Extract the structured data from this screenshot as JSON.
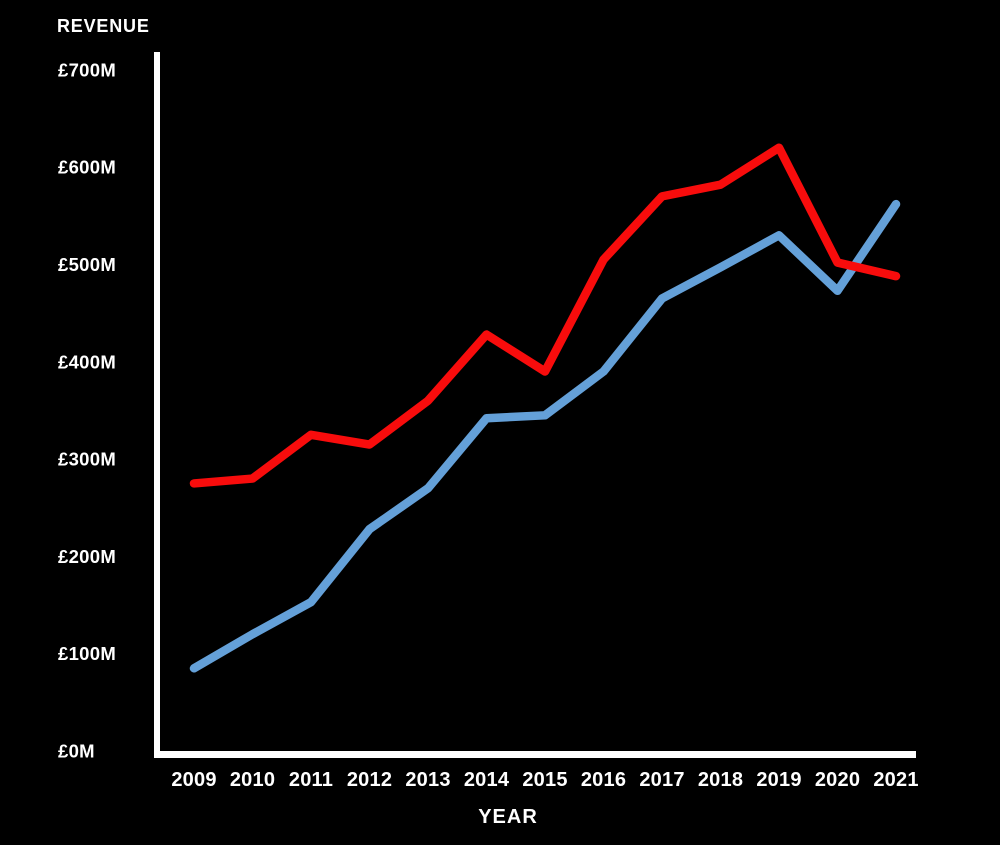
{
  "chart_data": {
    "type": "line",
    "title": "REVENUE",
    "xlabel": "YEAR",
    "categories": [
      "2009",
      "2010",
      "2011",
      "2012",
      "2013",
      "2014",
      "2015",
      "2016",
      "2017",
      "2018",
      "2019",
      "2020",
      "2021"
    ],
    "y_tick_labels": [
      "£0M",
      "£100M",
      "£200M",
      "£300M",
      "£400M",
      "£500M",
      "£600M",
      "£700M"
    ],
    "y_tick_values": [
      0,
      100,
      200,
      300,
      400,
      500,
      600,
      700
    ],
    "ylim": [
      0,
      700
    ],
    "units": "£M",
    "grid": false,
    "legend": "none",
    "background_color": "#000000",
    "axis_color": "#ffffff",
    "text_color": "#ffffff",
    "series": [
      {
        "name": "blue-line",
        "color": "#64a0d8",
        "values": [
          85,
          120,
          153,
          228,
          270,
          342,
          345,
          390,
          465,
          497,
          530,
          473,
          562
        ]
      },
      {
        "name": "red-line",
        "color": "#f80c0c",
        "values": [
          275,
          280,
          325,
          315,
          360,
          428,
          390,
          505,
          570,
          582,
          620,
          502,
          488
        ]
      }
    ]
  }
}
